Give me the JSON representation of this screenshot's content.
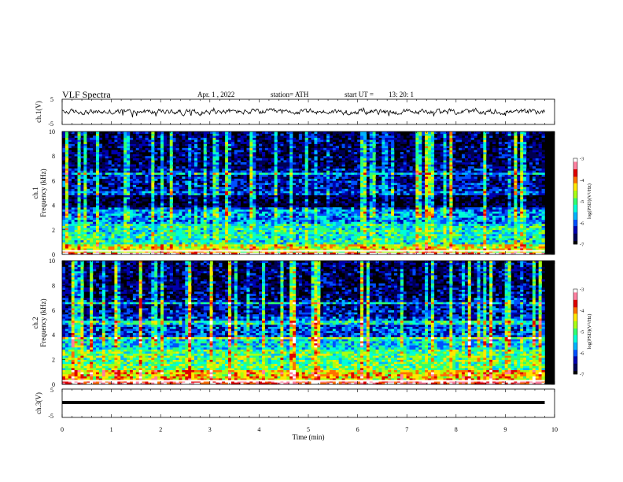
{
  "header": {
    "title": "VLF  Spectra",
    "date": "Apr. 1  , 2022",
    "station": "station= ATH",
    "start_label": "start  UT  =",
    "start_time": "13: 20: 1"
  },
  "colors": {
    "spectrogram_scale": [
      "#000000",
      "#000052",
      "#0000b0",
      "#0050ff",
      "#00b4ff",
      "#00ffd6",
      "#30ff70",
      "#a8ff10",
      "#ffe800",
      "#ff7000",
      "#e00000",
      "#ff80a0",
      "#ffffff"
    ],
    "trace": "#000000"
  },
  "chart_data": [
    {
      "type": "line",
      "ylabel": "ch.1(V)",
      "ylim": [
        -5,
        5
      ],
      "y_ticks": [
        "5",
        "-5"
      ],
      "xlim": [
        0,
        10
      ],
      "description_values": {
        "baseline_V": 0,
        "noise_amplitude_V": 0.8,
        "data_end_min": 9.8
      }
    },
    {
      "type": "heatmap",
      "ylabel": "ch.1\nFrequency  (kHz)",
      "ylim": [
        0,
        10
      ],
      "y_ticks": [
        "0",
        "2",
        "4",
        "6",
        "8",
        "10"
      ],
      "xlim": [
        0,
        10
      ],
      "colorbar": {
        "label": "log(PSD)(V²/Hz)",
        "range": [
          -7,
          -3
        ],
        "ticks": [
          "-3",
          "-4",
          "-5",
          "-6",
          "-7"
        ]
      },
      "bands_kHz": [
        {
          "from": 0,
          "to": 0.2,
          "level": -3.2
        },
        {
          "from": 0.2,
          "to": 0.9,
          "level": -4.5
        },
        {
          "from": 0.9,
          "to": 2.5,
          "level": -5.3
        },
        {
          "from": 2.5,
          "to": 3.6,
          "level": -5.8
        },
        {
          "from": 3.6,
          "to": 5.2,
          "level": -6.9
        },
        {
          "from": 5.2,
          "to": 7.0,
          "level": -6.4
        },
        {
          "from": 7.0,
          "to": 10.0,
          "level": -6.7
        }
      ]
    },
    {
      "type": "heatmap",
      "ylabel": "ch.2\nFrequency  (kHz)",
      "ylim": [
        0,
        10
      ],
      "y_ticks": [
        "0",
        "2",
        "4",
        "6",
        "8",
        "10"
      ],
      "xlim": [
        0,
        10
      ],
      "colorbar": {
        "label": "log(PSD)(V²/Hz)",
        "range": [
          -7,
          -3
        ],
        "ticks": [
          "-3",
          "-4",
          "-5",
          "-6",
          "-7"
        ]
      },
      "bands_kHz": [
        {
          "from": 0,
          "to": 0.3,
          "level": -3.5
        },
        {
          "from": 0.3,
          "to": 1.2,
          "level": -4.3
        },
        {
          "from": 1.2,
          "to": 2.8,
          "level": -5.0
        },
        {
          "from": 2.8,
          "to": 3.8,
          "level": -5.5
        },
        {
          "from": 3.8,
          "to": 5.5,
          "level": -6.1
        },
        {
          "from": 5.5,
          "to": 7.0,
          "level": -6.4
        },
        {
          "from": 7.0,
          "to": 10.0,
          "level": -6.7
        }
      ]
    },
    {
      "type": "line",
      "ylabel": "ch.3(V)",
      "ylim": [
        -5,
        5
      ],
      "y_ticks": [
        "5",
        "-5"
      ],
      "xlim": [
        0,
        10
      ],
      "xlabel": "Time  (min)",
      "x_ticks": [
        "0",
        "1",
        "2",
        "3",
        "4",
        "5",
        "6",
        "7",
        "8",
        "9",
        "10"
      ],
      "description_values": {
        "baseline_V": 0,
        "data_end_min": 9.8
      }
    }
  ]
}
